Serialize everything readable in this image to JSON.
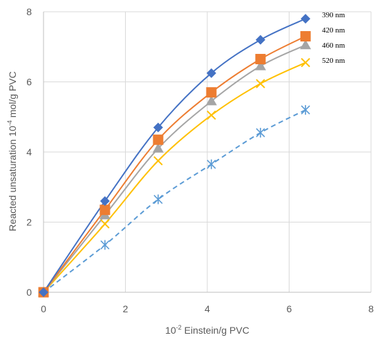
{
  "chart_data": {
    "type": "scatter",
    "xlabel_base": "10",
    "xlabel_exp": "-2",
    "xlabel_rest": " Einstein/g PVC",
    "ylabel_pre": "Reacted unsaturation 10",
    "ylabel_exp": "-4",
    "ylabel_rest": " mol/g PVC",
    "xlim": [
      0,
      8
    ],
    "ylim": [
      0,
      8
    ],
    "xticks": [
      "0",
      "2",
      "4",
      "6",
      "8"
    ],
    "yticks": [
      "0",
      "2",
      "4",
      "6",
      "8"
    ],
    "grid": true,
    "legend_position": "top-right",
    "series": [
      {
        "name": "390 nm",
        "color": "#4472C4",
        "marker": "diamond",
        "line": "solid",
        "x": [
          0,
          1.5,
          2.8,
          4.1,
          5.3,
          6.4
        ],
        "y": [
          0,
          2.6,
          4.7,
          6.25,
          7.2,
          7.8
        ]
      },
      {
        "name": "420 nm",
        "color": "#ED7D31",
        "marker": "square",
        "line": "solid",
        "x": [
          0,
          1.5,
          2.8,
          4.1,
          5.3,
          6.4
        ],
        "y": [
          0,
          2.35,
          4.35,
          5.7,
          6.65,
          7.3
        ]
      },
      {
        "name": "460 nm",
        "color": "#A5A5A5",
        "marker": "triangle",
        "line": "solid",
        "x": [
          0,
          1.5,
          2.8,
          4.1,
          5.3,
          6.4
        ],
        "y": [
          0,
          2.2,
          4.1,
          5.45,
          6.45,
          7.05
        ]
      },
      {
        "name": "520 nm",
        "color": "#FFC000",
        "marker": "x",
        "line": "solid",
        "x": [
          0,
          1.5,
          2.8,
          4.1,
          5.3,
          6.4
        ],
        "y": [
          0,
          1.95,
          3.75,
          5.05,
          5.95,
          6.55
        ]
      },
      {
        "name": "",
        "color": "#5B9BD5",
        "marker": "star",
        "line": "dashed",
        "x": [
          0,
          1.5,
          2.8,
          4.1,
          5.3,
          6.4
        ],
        "y": [
          0,
          1.35,
          2.65,
          3.65,
          4.55,
          5.2
        ]
      }
    ]
  }
}
